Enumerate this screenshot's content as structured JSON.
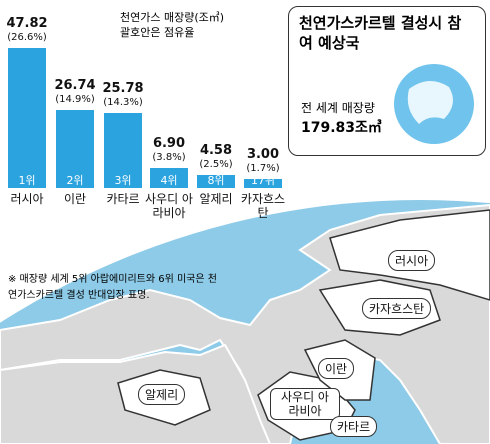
{
  "chart_data": {
    "type": "bar",
    "categories": [
      "러시아",
      "이란",
      "카타르",
      "사우디 아라비아",
      "알제리",
      "카자흐스탄"
    ],
    "values": [
      47.82,
      26.74,
      25.78,
      6.9,
      4.58,
      3.0
    ],
    "value_labels": [
      "47.82",
      "26.74",
      "25.78",
      "6.90",
      "4.58",
      "3.00"
    ],
    "shares": [
      26.6,
      14.9,
      14.3,
      3.8,
      2.5,
      1.7
    ],
    "share_labels": [
      "(26.6%)",
      "(14.9%)",
      "(14.3%)",
      "(3.8%)",
      "(2.5%)",
      "(1.7%)"
    ],
    "ranks": [
      "1위",
      "2위",
      "3위",
      "4위",
      "8위",
      "17위"
    ],
    "color": "#2aa3df",
    "note_unit": "천연가스 매장량(조㎥)",
    "note_share": "괄호안은 점유율"
  },
  "callout": {
    "title": "천연가스카르텔 결성시 참여 예상국",
    "label": "전 세계 매장량",
    "total": "179.83조㎥"
  },
  "footnote": "※ 매장량 세계 5위 아랍에미리트와 6위 미국은 천연가스카르텔 결성 반대입장 표명.",
  "map": {
    "labels": [
      "러시아",
      "카자흐스탄",
      "이란",
      "사우디 아라비아",
      "알제리",
      "카타르"
    ]
  }
}
